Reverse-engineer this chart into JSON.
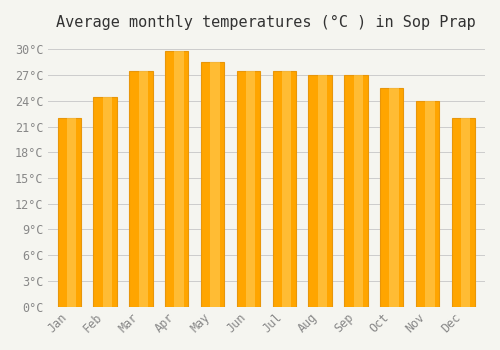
{
  "title": "Average monthly temperatures (°C ) in Sop Prap",
  "months": [
    "Jan",
    "Feb",
    "Mar",
    "Apr",
    "May",
    "Jun",
    "Jul",
    "Aug",
    "Sep",
    "Oct",
    "Nov",
    "Dec"
  ],
  "values": [
    22.0,
    24.5,
    27.5,
    29.8,
    28.5,
    27.5,
    27.5,
    27.0,
    27.0,
    25.5,
    24.0,
    22.0
  ],
  "bar_color": "#FFA500",
  "bar_edge_color": "#E8960A",
  "background_color": "#F5F5F0",
  "grid_color": "#CCCCCC",
  "ylim": [
    0,
    31
  ],
  "yticks": [
    0,
    3,
    6,
    9,
    12,
    15,
    18,
    21,
    24,
    27,
    30
  ],
  "ytick_labels": [
    "0°C",
    "3°C",
    "6°C",
    "9°C",
    "12°C",
    "15°C",
    "18°C",
    "21°C",
    "24°C",
    "27°C",
    "30°C"
  ],
  "title_fontsize": 11,
  "tick_fontsize": 8.5,
  "tick_color": "#888888",
  "font_family": "monospace"
}
